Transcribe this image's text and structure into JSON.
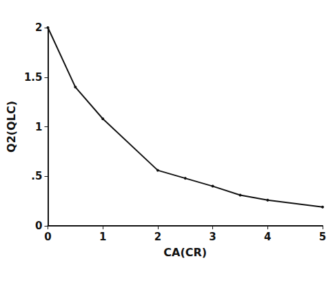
{
  "chart_data": {
    "type": "line",
    "x_label": "CA(CR)",
    "y_label": "Q2(QLC)",
    "x": [
      0,
      0.5,
      1,
      2,
      2.5,
      3,
      3.5,
      4,
      5
    ],
    "values": [
      2.0,
      1.4,
      1.08,
      0.56,
      0.48,
      0.4,
      0.31,
      0.26,
      0.19
    ],
    "color": "#111111",
    "marker": "circle",
    "line_style": "solid",
    "xlim": [
      0,
      5
    ],
    "xticks": [
      0,
      1,
      2,
      3,
      4,
      5
    ],
    "ylim": [
      0,
      2
    ],
    "yticks": [
      0,
      {
        "value": 0.5,
        "label": ".5"
      },
      1,
      {
        "value": 1.5,
        "label": "1.5"
      },
      2
    ],
    "grid": false
  }
}
